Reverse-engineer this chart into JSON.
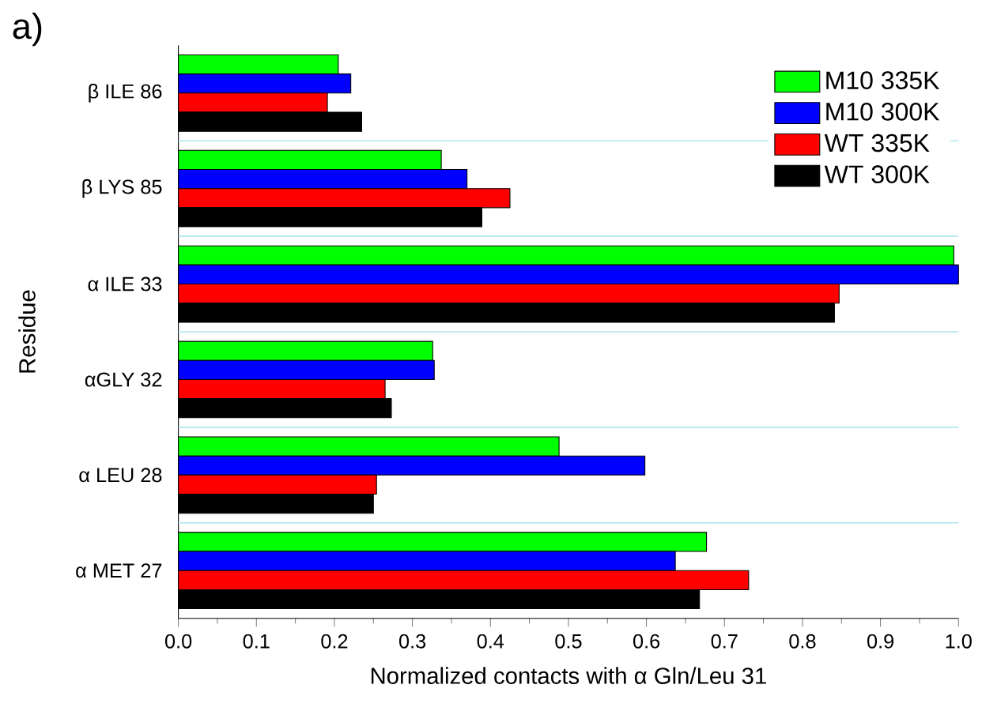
{
  "chart_data": {
    "type": "bar",
    "orientation": "horizontal",
    "xlabel": "Normalized contacts with α Gln/Leu 31",
    "ylabel": "Residue",
    "annotations": [
      "a)"
    ],
    "categories": [
      "β ILE 86",
      "β LYS 85",
      "α ILE 33",
      "αGLY 32",
      "α LEU 28",
      "α MET 27"
    ],
    "series": [
      {
        "name": "M10 335K",
        "color": "#00ff00",
        "values": [
          0.205,
          0.337,
          0.994,
          0.326,
          0.488,
          0.677
        ]
      },
      {
        "name": "M10 300K",
        "color": "#0000ff",
        "values": [
          0.221,
          0.37,
          1.0,
          0.328,
          0.598,
          0.637
        ]
      },
      {
        "name": "WT 335K",
        "color": "#ff0000",
        "values": [
          0.191,
          0.425,
          0.847,
          0.265,
          0.254,
          0.731
        ]
      },
      {
        "name": "WT 300K",
        "color": "#000000",
        "values": [
          0.235,
          0.389,
          0.841,
          0.273,
          0.25,
          0.668
        ]
      }
    ],
    "xlim": [
      0,
      1.0
    ],
    "xticks": [
      {
        "value": 0,
        "label": "0.0"
      },
      0.1,
      0.2,
      0.3,
      0.4,
      0.5,
      0.6,
      0.7,
      0.8,
      0.9,
      {
        "value": 1.0,
        "label": "1.0"
      }
    ],
    "grid": "y",
    "legend": "top right"
  }
}
